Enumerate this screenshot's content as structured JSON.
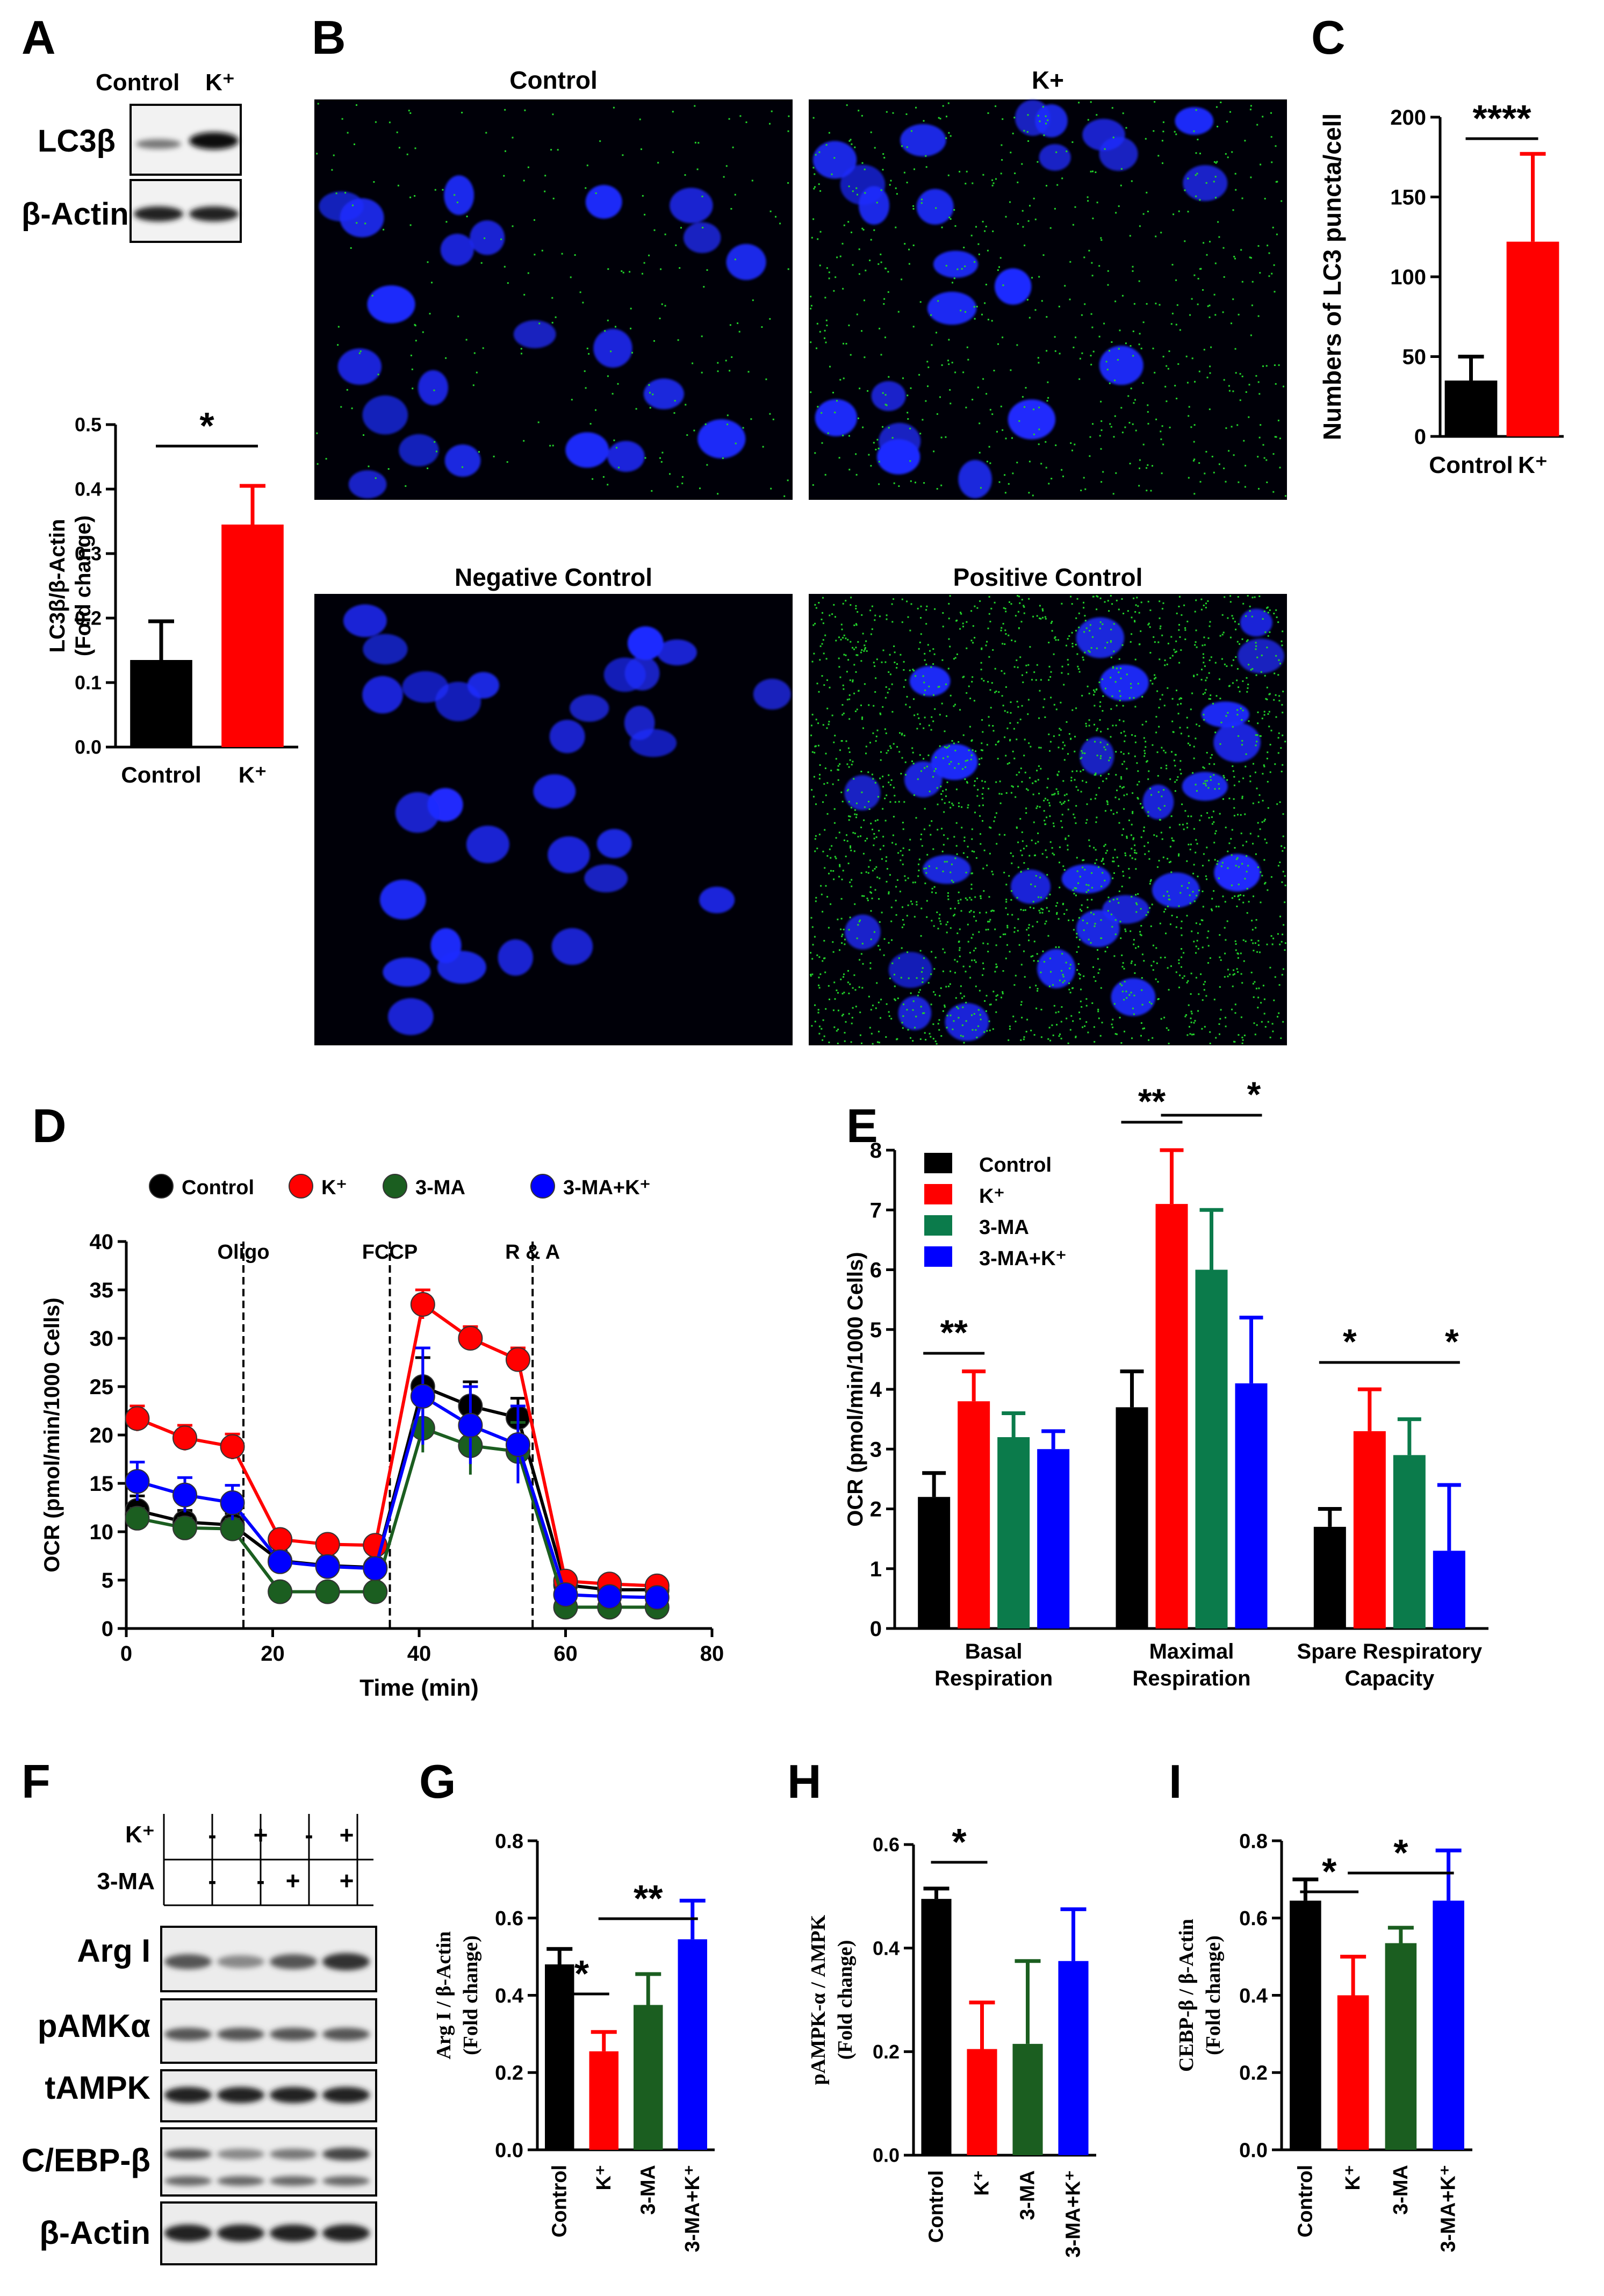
{
  "panel_letters": [
    "A",
    "B",
    "C",
    "D",
    "E",
    "F",
    "G",
    "H",
    "I"
  ],
  "panel_a": {
    "blot_headers": [
      "Control",
      "K⁺"
    ],
    "blot_labels": [
      "LC3β",
      "β-Actin"
    ],
    "chart_title_hidden": ""
  },
  "panel_b": {
    "titles": [
      "Control",
      "K+",
      "Negative Control",
      "Positive Control"
    ]
  },
  "panel_f": {
    "row_labels": [
      "K⁺",
      "3-MA"
    ],
    "k_signs": [
      "-",
      "+",
      "-",
      "+"
    ],
    "ma_signs": [
      "-",
      "-",
      "+",
      "+"
    ],
    "blot_labels": [
      "Arg I",
      "pAMKα",
      "tAMPK",
      "C/EBP-β",
      "β-Actin"
    ]
  },
  "chart_data": [
    {
      "id": "A",
      "type": "bar",
      "categories": [
        "Control",
        "K⁺"
      ],
      "values": [
        0.135,
        0.345
      ],
      "errors": [
        0.06,
        0.06
      ],
      "colors": [
        "#000000",
        "#ff0000"
      ],
      "ylabel": [
        "LC3β/β-Actin",
        "(Fold change)"
      ],
      "ylim": [
        0,
        0.5
      ],
      "ticks": [
        "0.0",
        "0.1",
        "0.2",
        "0.3",
        "0.4",
        "0.5"
      ],
      "significance": [
        {
          "pair": [
            0,
            1
          ],
          "label": "*"
        }
      ]
    },
    {
      "id": "C",
      "type": "bar",
      "categories": [
        "Control",
        "K⁺"
      ],
      "values": [
        35,
        122
      ],
      "errors": [
        15,
        55
      ],
      "colors": [
        "#000000",
        "#ff0000"
      ],
      "ylabel": [
        "Numbers of LC3 puncta/cell"
      ],
      "ylim": [
        0,
        200
      ],
      "ticks": [
        "0",
        "50",
        "100",
        "150",
        "200"
      ],
      "significance": [
        {
          "pair": [
            0,
            1
          ],
          "label": "****"
        }
      ]
    },
    {
      "id": "D",
      "type": "line",
      "xlabel": "Time (min)",
      "ylabel": "OCR (pmol/min/1000 Cells)",
      "xlim": [
        0,
        80
      ],
      "ylim": [
        0,
        40
      ],
      "xticks": [
        "0",
        "20",
        "40",
        "60",
        "80"
      ],
      "yticks": [
        "0",
        "5",
        "10",
        "15",
        "20",
        "25",
        "30",
        "35",
        "40"
      ],
      "x": [
        1.5,
        8,
        14.5,
        21,
        27.5,
        34,
        40.5,
        47,
        53.5,
        60,
        66,
        72.5
      ],
      "injections": [
        {
          "label": "Oligo",
          "x": 16
        },
        {
          "label": "FCCP",
          "x": 36
        },
        {
          "label": "R & A",
          "x": 55.5
        }
      ],
      "series": [
        {
          "name": "Control",
          "color": "#000000",
          "values": [
            12.2,
            11,
            10.7,
            7,
            6.5,
            6.3,
            25,
            23,
            21.8,
            4.5,
            4,
            4
          ],
          "errors": [
            1.5,
            1.2,
            1.2,
            1,
            0.8,
            0.8,
            3,
            2.5,
            2,
            0.5,
            0.5,
            0.5
          ]
        },
        {
          "name": "K⁺",
          "color": "#ff0000",
          "values": [
            21.7,
            19.7,
            18.8,
            9.2,
            8.7,
            8.6,
            33.5,
            30,
            27.8,
            4.9,
            4.6,
            4.4
          ],
          "errors": [
            1.3,
            1.3,
            1.3,
            0.8,
            0.6,
            0.6,
            1.5,
            1.2,
            1.2,
            0.5,
            0.5,
            0.5
          ]
        },
        {
          "name": "3-MA",
          "color": "#1b5e20",
          "values": [
            11.4,
            10.4,
            10.3,
            3.8,
            3.8,
            3.8,
            20.7,
            18.9,
            18.3,
            2.2,
            2.2,
            2.2
          ],
          "errors": [
            1,
            1,
            1,
            0.5,
            0.5,
            0.5,
            2.5,
            3,
            3,
            0.4,
            0.4,
            0.4
          ]
        },
        {
          "name": "3-MA+K⁺",
          "color": "#0000ff",
          "values": [
            15.2,
            13.8,
            13,
            6.9,
            6.4,
            6.2,
            24,
            21,
            19,
            3.5,
            3.3,
            3.2
          ],
          "errors": [
            2,
            1.8,
            1.8,
            1,
            0.8,
            0.8,
            5,
            4,
            4,
            0.5,
            0.5,
            0.5
          ]
        }
      ]
    },
    {
      "id": "E",
      "type": "bar",
      "categories": [
        "Basal|Respiration",
        "Maximal|Respiration",
        "Spare Respiratory|Capacity"
      ],
      "ylabel": "OCR (pmol/min/1000 Cells)",
      "ylim": [
        0,
        8
      ],
      "ticks": [
        "0",
        "1",
        "2",
        "3",
        "4",
        "5",
        "6",
        "7",
        "8"
      ],
      "series": [
        {
          "name": "Control",
          "color": "#000000",
          "values": [
            2.2,
            3.7,
            1.7
          ],
          "errors": [
            0.4,
            0.6,
            0.3
          ]
        },
        {
          "name": "K⁺",
          "color": "#ff0000",
          "values": [
            3.8,
            7.1,
            3.3
          ],
          "errors": [
            0.5,
            0.9,
            0.7
          ]
        },
        {
          "name": "3-MA",
          "color": "#0b7b4b",
          "values": [
            3.2,
            6.0,
            2.9
          ],
          "errors": [
            0.4,
            1.0,
            0.6
          ]
        },
        {
          "name": "3-MA+K⁺",
          "color": "#0000ff",
          "values": [
            3.0,
            4.1,
            1.3
          ],
          "errors": [
            0.3,
            1.1,
            1.1
          ]
        }
      ],
      "significance": [
        {
          "group": 0,
          "from": 0,
          "to": 1,
          "label": "**"
        },
        {
          "group": 1,
          "from": 0,
          "to": 1,
          "label": "**"
        },
        {
          "group": 1,
          "from": 1,
          "to": 3,
          "label": "*"
        },
        {
          "group": 2,
          "from": 0,
          "to": 1,
          "label": "*"
        },
        {
          "group": 2,
          "from": 1,
          "to": 3,
          "label": "*"
        }
      ]
    },
    {
      "id": "G",
      "type": "bar",
      "categories": [
        "Control",
        "K⁺",
        "3-MA",
        "3-MA+K⁺"
      ],
      "values": [
        0.48,
        0.255,
        0.375,
        0.545
      ],
      "errors": [
        0.04,
        0.05,
        0.08,
        0.1
      ],
      "colors": [
        "#000000",
        "#ff0000",
        "#1b5e20",
        "#0000ff"
      ],
      "ylabel": [
        "Arg I / β-Actin",
        "(Fold change)"
      ],
      "ylim": [
        0,
        0.8
      ],
      "ticks": [
        "0.0",
        "0.2",
        "0.4",
        "0.6",
        "0.8"
      ],
      "significance": [
        {
          "pair": [
            0,
            1
          ],
          "label": "*"
        },
        {
          "pair": [
            1,
            3
          ],
          "label": "**"
        }
      ]
    },
    {
      "id": "H",
      "type": "bar",
      "categories": [
        "Control",
        "K⁺",
        "3-MA",
        "3-MA+K⁺"
      ],
      "values": [
        0.495,
        0.205,
        0.215,
        0.375
      ],
      "errors": [
        0.02,
        0.09,
        0.16,
        0.1
      ],
      "colors": [
        "#000000",
        "#ff0000",
        "#1b5e20",
        "#0000ff"
      ],
      "ylabel": [
        "pAMPK-α / AMPK",
        "(Fold change)"
      ],
      "ylim": [
        0,
        0.6
      ],
      "ticks": [
        "0.0",
        "0.2",
        "0.4",
        "0.6"
      ],
      "significance": [
        {
          "pair": [
            0,
            1
          ],
          "label": "*"
        }
      ]
    },
    {
      "id": "I",
      "type": "bar",
      "categories": [
        "Control",
        "K⁺",
        "3-MA",
        "3-MA+K⁺"
      ],
      "values": [
        0.645,
        0.4,
        0.535,
        0.645
      ],
      "errors": [
        0.055,
        0.1,
        0.04,
        0.13
      ],
      "colors": [
        "#000000",
        "#ff0000",
        "#1b5e20",
        "#0000ff"
      ],
      "ylabel": [
        "CEBP-β / β-Actin",
        "(Fold change)"
      ],
      "ylim": [
        0,
        0.8
      ],
      "ticks": [
        "0.0",
        "0.2",
        "0.4",
        "0.6",
        "0.8"
      ],
      "significance": [
        {
          "pair": [
            0,
            1
          ],
          "label": "*"
        },
        {
          "pair": [
            1,
            3
          ],
          "label": "*"
        }
      ]
    }
  ]
}
